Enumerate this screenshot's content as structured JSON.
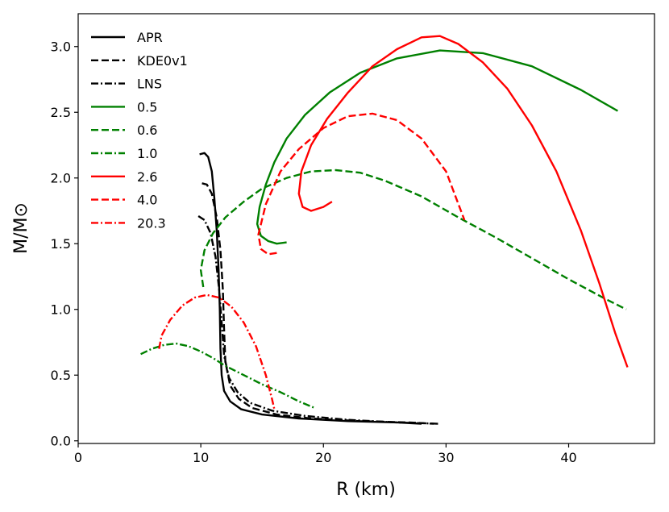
{
  "chart_data": {
    "type": "line",
    "title": "",
    "xlabel": "R (km)",
    "ylabel": "M/M⊙",
    "xlim": [
      0,
      47
    ],
    "ylim": [
      -0.02,
      3.25
    ],
    "xticks": [
      0,
      10,
      20,
      30,
      40
    ],
    "yticks": [
      0.0,
      0.5,
      1.0,
      1.5,
      2.0,
      2.5,
      3.0
    ],
    "grid": false,
    "legend_position": "top-left",
    "series": [
      {
        "name": "APR",
        "color": "#000000",
        "dash": "solid",
        "points": [
          [
            9.9,
            2.18
          ],
          [
            10.3,
            2.19
          ],
          [
            10.6,
            2.16
          ],
          [
            10.9,
            2.05
          ],
          [
            11.1,
            1.85
          ],
          [
            11.3,
            1.6
          ],
          [
            11.45,
            1.3
          ],
          [
            11.55,
            1.0
          ],
          [
            11.6,
            0.7
          ],
          [
            11.7,
            0.5
          ],
          [
            11.9,
            0.38
          ],
          [
            12.4,
            0.3
          ],
          [
            13.3,
            0.24
          ],
          [
            15,
            0.2
          ],
          [
            18,
            0.17
          ],
          [
            22,
            0.15
          ],
          [
            26,
            0.14
          ],
          [
            28,
            0.13
          ]
        ]
      },
      {
        "name": "KDE0v1",
        "color": "#000000",
        "dash": "dashed",
        "points": [
          [
            10.1,
            1.96
          ],
          [
            10.5,
            1.95
          ],
          [
            10.9,
            1.88
          ],
          [
            11.3,
            1.7
          ],
          [
            11.6,
            1.45
          ],
          [
            11.8,
            1.15
          ],
          [
            11.9,
            0.85
          ],
          [
            12.0,
            0.6
          ],
          [
            12.4,
            0.42
          ],
          [
            13.1,
            0.32
          ],
          [
            14.2,
            0.25
          ],
          [
            16.2,
            0.2
          ],
          [
            19,
            0.17
          ],
          [
            23,
            0.15
          ],
          [
            27,
            0.14
          ],
          [
            29,
            0.13
          ]
        ]
      },
      {
        "name": "LNS",
        "color": "#000000",
        "dash": "dashdot",
        "points": [
          [
            9.8,
            1.71
          ],
          [
            10.3,
            1.68
          ],
          [
            10.8,
            1.58
          ],
          [
            11.2,
            1.4
          ],
          [
            11.5,
            1.15
          ],
          [
            11.7,
            0.9
          ],
          [
            11.9,
            0.65
          ],
          [
            12.3,
            0.48
          ],
          [
            13.0,
            0.37
          ],
          [
            14.0,
            0.29
          ],
          [
            15.8,
            0.23
          ],
          [
            18.5,
            0.19
          ],
          [
            22,
            0.16
          ],
          [
            26,
            0.14
          ],
          [
            29.5,
            0.13
          ]
        ]
      },
      {
        "name": "0.5",
        "color": "#008000",
        "dash": "solid",
        "points": [
          [
            17,
            1.51
          ],
          [
            16.2,
            1.5
          ],
          [
            15.5,
            1.52
          ],
          [
            14.9,
            1.56
          ],
          [
            14.6,
            1.65
          ],
          [
            14.8,
            1.78
          ],
          [
            15.3,
            1.95
          ],
          [
            16,
            2.12
          ],
          [
            17,
            2.3
          ],
          [
            18.5,
            2.48
          ],
          [
            20.5,
            2.65
          ],
          [
            23,
            2.8
          ],
          [
            26,
            2.91
          ],
          [
            29.5,
            2.97
          ],
          [
            33,
            2.95
          ],
          [
            37,
            2.85
          ],
          [
            41,
            2.67
          ],
          [
            44,
            2.51
          ]
        ]
      },
      {
        "name": "0.6",
        "color": "#008000",
        "dash": "dashed",
        "points": [
          [
            10.2,
            1.17
          ],
          [
            10,
            1.3
          ],
          [
            10.3,
            1.45
          ],
          [
            11,
            1.58
          ],
          [
            12,
            1.7
          ],
          [
            13.5,
            1.82
          ],
          [
            15,
            1.92
          ],
          [
            17,
            2.0
          ],
          [
            19,
            2.05
          ],
          [
            21,
            2.06
          ],
          [
            23,
            2.04
          ],
          [
            25,
            1.98
          ],
          [
            28,
            1.86
          ],
          [
            31,
            1.7
          ],
          [
            34,
            1.55
          ],
          [
            37,
            1.39
          ],
          [
            40,
            1.23
          ],
          [
            43,
            1.08
          ],
          [
            44.7,
            1.0
          ]
        ]
      },
      {
        "name": "1.0",
        "color": "#008000",
        "dash": "dashdot",
        "points": [
          [
            5.1,
            0.66
          ],
          [
            6,
            0.7
          ],
          [
            7,
            0.73
          ],
          [
            8,
            0.74
          ],
          [
            9,
            0.72
          ],
          [
            10,
            0.68
          ],
          [
            11,
            0.63
          ],
          [
            12,
            0.57
          ],
          [
            13.5,
            0.5
          ],
          [
            15,
            0.43
          ],
          [
            16.5,
            0.37
          ],
          [
            18,
            0.3
          ],
          [
            19.3,
            0.25
          ]
        ]
      },
      {
        "name": "2.6",
        "color": "#ff0000",
        "dash": "solid",
        "points": [
          [
            20.7,
            1.82
          ],
          [
            20,
            1.78
          ],
          [
            19,
            1.75
          ],
          [
            18.3,
            1.78
          ],
          [
            18,
            1.88
          ],
          [
            18.2,
            2.05
          ],
          [
            19,
            2.25
          ],
          [
            20.3,
            2.45
          ],
          [
            22,
            2.65
          ],
          [
            24,
            2.85
          ],
          [
            26,
            2.98
          ],
          [
            28,
            3.07
          ],
          [
            29.5,
            3.08
          ],
          [
            31,
            3.02
          ],
          [
            33,
            2.88
          ],
          [
            35,
            2.68
          ],
          [
            37,
            2.4
          ],
          [
            39,
            2.05
          ],
          [
            41,
            1.6
          ],
          [
            42.5,
            1.2
          ],
          [
            43.8,
            0.82
          ],
          [
            44.8,
            0.56
          ]
        ]
      },
      {
        "name": "4.0",
        "color": "#ff0000",
        "dash": "dashed",
        "points": [
          [
            16.2,
            1.43
          ],
          [
            15.5,
            1.42
          ],
          [
            14.9,
            1.46
          ],
          [
            14.7,
            1.57
          ],
          [
            15.3,
            1.8
          ],
          [
            16.5,
            2.05
          ],
          [
            18,
            2.22
          ],
          [
            20,
            2.38
          ],
          [
            22,
            2.47
          ],
          [
            24,
            2.49
          ],
          [
            26,
            2.44
          ],
          [
            28,
            2.3
          ],
          [
            30,
            2.05
          ],
          [
            31.5,
            1.68
          ]
        ]
      },
      {
        "name": "20.3",
        "color": "#ff0000",
        "dash": "dashdot",
        "points": [
          [
            6.6,
            0.7
          ],
          [
            6.8,
            0.8
          ],
          [
            7.5,
            0.92
          ],
          [
            8.5,
            1.03
          ],
          [
            9.5,
            1.09
          ],
          [
            10.5,
            1.11
          ],
          [
            11.5,
            1.09
          ],
          [
            12.5,
            1.02
          ],
          [
            13.5,
            0.9
          ],
          [
            14.5,
            0.72
          ],
          [
            15.3,
            0.5
          ],
          [
            15.8,
            0.32
          ],
          [
            16,
            0.24
          ]
        ]
      }
    ]
  }
}
